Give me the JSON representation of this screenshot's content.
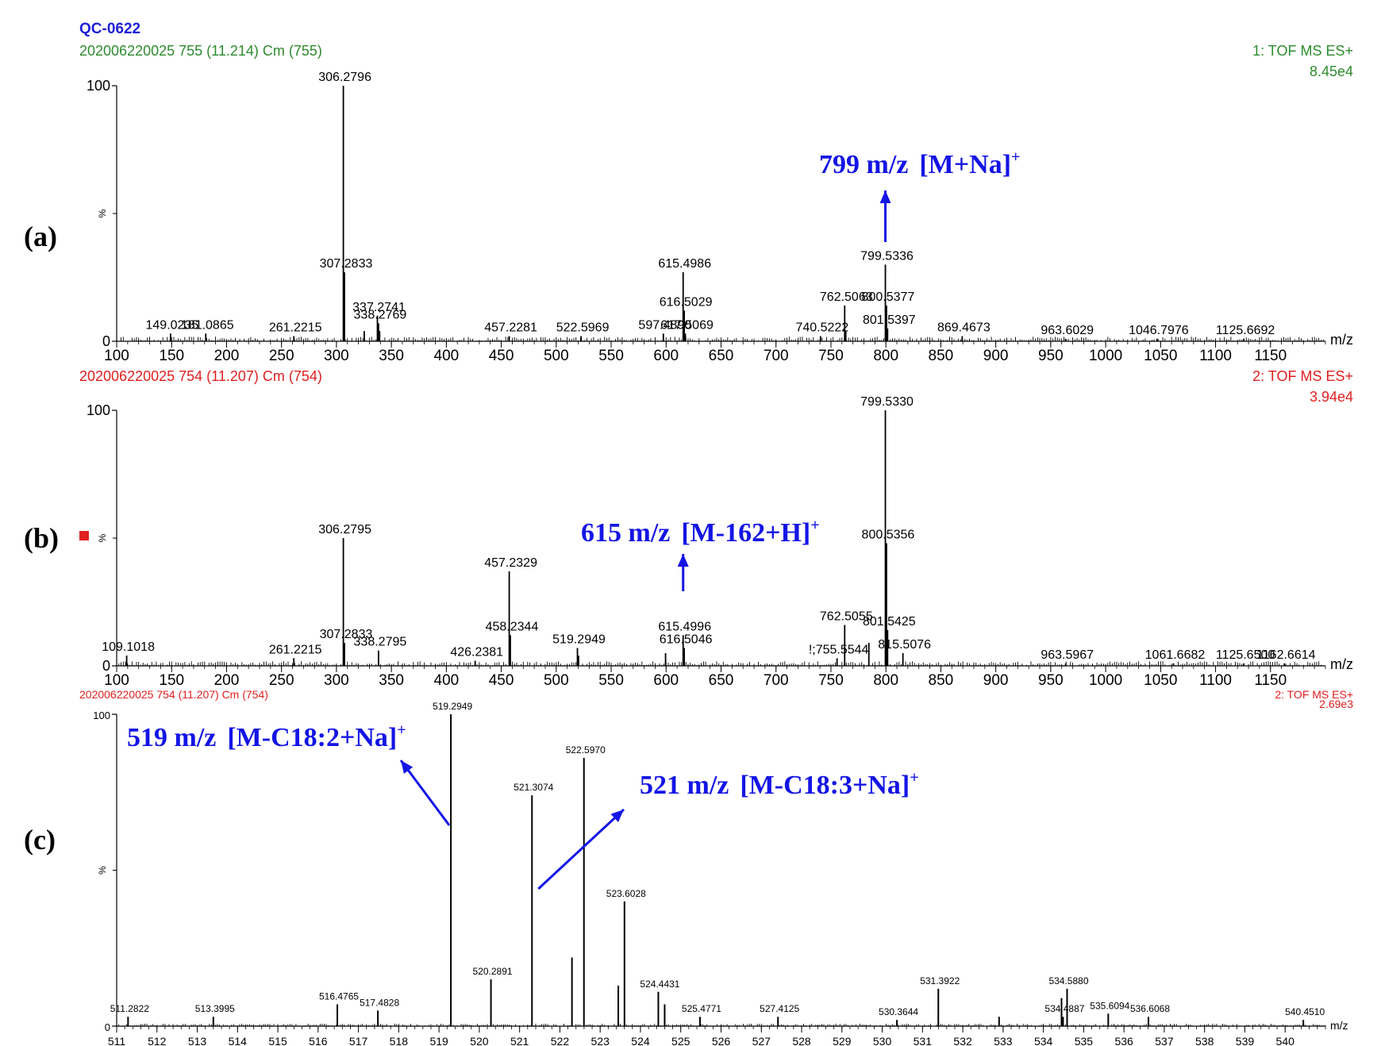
{
  "header": {
    "sample_id": "QC-0622"
  },
  "colors": {
    "title": "#1f1fd6",
    "green": "#2e8b2e",
    "red": "#e02020",
    "blue": "#1414e6",
    "ink": "#000000"
  },
  "chart_data": [
    {
      "type": "bar",
      "panel_label": "(a)",
      "scan": "202006220025 755 (11.214) Cm (755)",
      "scan_color": "green",
      "function": "1: TOF MS ES+",
      "max_intensity": "8.45e4",
      "ylabel": "%",
      "xlabel": "m/z",
      "xlim": [
        100,
        1200
      ],
      "ylim": [
        0,
        100
      ],
      "xticks": [
        100,
        150,
        200,
        250,
        300,
        350,
        400,
        450,
        500,
        550,
        600,
        650,
        700,
        750,
        800,
        850,
        900,
        950,
        1000,
        1050,
        1100,
        1150
      ],
      "peaks": [
        {
          "mz": 306.2796,
          "int": 100,
          "label": "306.2796"
        },
        {
          "mz": 307.2833,
          "int": 27,
          "label": "307.2833"
        },
        {
          "mz": 337.2741,
          "int": 10,
          "label": "337.2741"
        },
        {
          "mz": 338.2769,
          "int": 7,
          "label": "338.2769"
        },
        {
          "mz": 339.28,
          "int": 4
        },
        {
          "mz": 325.3,
          "int": 4
        },
        {
          "mz": 615.4986,
          "int": 27,
          "label": "615.4986"
        },
        {
          "mz": 616.5029,
          "int": 12,
          "label": "616.5029"
        },
        {
          "mz": 617.5069,
          "int": 3,
          "label": "617.5069"
        },
        {
          "mz": 799.5336,
          "int": 30,
          "label": "799.5336"
        },
        {
          "mz": 800.5377,
          "int": 14,
          "label": "800.5377"
        },
        {
          "mz": 801.5397,
          "int": 5,
          "label": "801.5397"
        },
        {
          "mz": 762.5063,
          "int": 14,
          "label": "762.5063"
        },
        {
          "mz": 763.5,
          "int": 4
        },
        {
          "mz": 149.0235,
          "int": 3,
          "label": "149.0235"
        },
        {
          "mz": 181.0865,
          "int": 3,
          "label": "181.0865"
        },
        {
          "mz": 261.2215,
          "int": 2,
          "label": "261.2215"
        },
        {
          "mz": 457.2281,
          "int": 2,
          "label": "457.2281"
        },
        {
          "mz": 522.5969,
          "int": 2,
          "label": "522.5969"
        },
        {
          "mz": 597.489,
          "int": 3,
          "label": "597.4890"
        },
        {
          "mz": 740.5222,
          "int": 2,
          "label": "740.5222"
        },
        {
          "mz": 869.4673,
          "int": 2,
          "label": "869.4673"
        },
        {
          "mz": 963.6029,
          "int": 1,
          "label": "963.6029"
        },
        {
          "mz": 1046.7976,
          "int": 1,
          "label": "1046.7976"
        },
        {
          "mz": 1125.6692,
          "int": 1,
          "label": "1125.6692"
        }
      ],
      "annotation": {
        "text": "799 m/z",
        "ion": "[M+Na]",
        "sup": "+",
        "target_mz": 799.5336
      }
    },
    {
      "type": "bar",
      "panel_label": "(b)",
      "scan": "202006220025 754 (11.207) Cm (754)",
      "scan_color": "red",
      "function": "2: TOF MS ES+",
      "max_intensity": "3.94e4",
      "ylabel": "%",
      "xlabel": "m/z",
      "xlim": [
        100,
        1200
      ],
      "ylim": [
        0,
        100
      ],
      "xticks": [
        100,
        150,
        200,
        250,
        300,
        350,
        400,
        450,
        500,
        550,
        600,
        650,
        700,
        750,
        800,
        850,
        900,
        950,
        1000,
        1050,
        1100,
        1150
      ],
      "peaks": [
        {
          "mz": 799.533,
          "int": 100,
          "label": "799.5330"
        },
        {
          "mz": 800.5356,
          "int": 48,
          "label": "800.5356"
        },
        {
          "mz": 801.5425,
          "int": 14,
          "label": "801.5425"
        },
        {
          "mz": 306.2795,
          "int": 50,
          "label": "306.2795"
        },
        {
          "mz": 307.2833,
          "int": 9,
          "label": "307.2833"
        },
        {
          "mz": 457.2329,
          "int": 37,
          "label": "457.2329"
        },
        {
          "mz": 458.2344,
          "int": 12,
          "label": "458.2344"
        },
        {
          "mz": 519.2949,
          "int": 7,
          "label": "519.2949"
        },
        {
          "mz": 520.3,
          "int": 4
        },
        {
          "mz": 615.4996,
          "int": 12,
          "label": "615.4996"
        },
        {
          "mz": 616.5046,
          "int": 7,
          "label": "616.5046"
        },
        {
          "mz": 762.5055,
          "int": 16,
          "label": "762.5055"
        },
        {
          "mz": 784.5,
          "int": 9
        },
        {
          "mz": 599.5,
          "int": 5
        },
        {
          "mz": 109.1018,
          "int": 4,
          "label": "109.1018"
        },
        {
          "mz": 261.2215,
          "int": 3,
          "label": "261.2215"
        },
        {
          "mz": 338.2795,
          "int": 6,
          "label": "338.2795"
        },
        {
          "mz": 426.2381,
          "int": 2,
          "label": "426.2381"
        },
        {
          "mz": 755.5544,
          "int": 3,
          "label": "!;755.5544"
        },
        {
          "mz": 815.5076,
          "int": 5,
          "label": "815.5076"
        },
        {
          "mz": 963.5967,
          "int": 1,
          "label": "963.5967"
        },
        {
          "mz": 1061.6682,
          "int": 1,
          "label": "1061.6682"
        },
        {
          "mz": 1125.65,
          "int": 1,
          "label": "1125.6500"
        },
        {
          "mz": 1162.6614,
          "int": 1,
          "label": "1162.6614"
        }
      ],
      "annotation": {
        "text": "615 m/z",
        "ion": "[M-162+H]",
        "sup": "+",
        "target_mz": 615.4996
      }
    },
    {
      "type": "bar",
      "panel_label": "(c)",
      "scan": "202006220025 754 (11.207) Cm (754)",
      "scan_color": "red",
      "function": "2: TOF MS ES+",
      "max_intensity": "2.69e3",
      "ylabel": "%",
      "xlabel": "m/z",
      "xlim": [
        511,
        541
      ],
      "ylim": [
        0,
        100
      ],
      "xticks": [
        511,
        512,
        513,
        514,
        515,
        516,
        517,
        518,
        519,
        520,
        521,
        522,
        523,
        524,
        525,
        526,
        527,
        528,
        529,
        530,
        531,
        532,
        533,
        534,
        535,
        536,
        537,
        538,
        539,
        540
      ],
      "peaks": [
        {
          "mz": 519.2949,
          "int": 100,
          "label": "519.2949"
        },
        {
          "mz": 521.3074,
          "int": 74,
          "label": "521.3074"
        },
        {
          "mz": 522.597,
          "int": 86,
          "label": "522.5970"
        },
        {
          "mz": 523.6028,
          "int": 40,
          "label": "523.6028"
        },
        {
          "mz": 522.3,
          "int": 22
        },
        {
          "mz": 520.2891,
          "int": 15,
          "label": "520.2891"
        },
        {
          "mz": 524.4431,
          "int": 11,
          "label": "524.4431"
        },
        {
          "mz": 524.6,
          "int": 7
        },
        {
          "mz": 523.45,
          "int": 13
        },
        {
          "mz": 525.4771,
          "int": 3,
          "label": "525.4771"
        },
        {
          "mz": 511.2822,
          "int": 3,
          "label": "511.2822"
        },
        {
          "mz": 513.3995,
          "int": 3,
          "label": "513.3995"
        },
        {
          "mz": 516.4765,
          "int": 7,
          "label": "516.4765"
        },
        {
          "mz": 517.4828,
          "int": 5,
          "label": "517.4828"
        },
        {
          "mz": 527.4125,
          "int": 3,
          "label": "527.4125"
        },
        {
          "mz": 530.3644,
          "int": 2,
          "label": "530.3644"
        },
        {
          "mz": 531.3922,
          "int": 12,
          "label": "531.3922"
        },
        {
          "mz": 534.4887,
          "int": 3,
          "label": "534.4887"
        },
        {
          "mz": 534.588,
          "int": 12,
          "label": "534.5880"
        },
        {
          "mz": 534.45,
          "int": 9
        },
        {
          "mz": 535.6094,
          "int": 4,
          "label": "535.6094"
        },
        {
          "mz": 536.6068,
          "int": 3,
          "label": "536.6068"
        },
        {
          "mz": 540.451,
          "int": 2,
          "label": "540.4510"
        },
        {
          "mz": 532.9,
          "int": 3
        }
      ],
      "annotations": [
        {
          "text": "519 m/z",
          "ion": "[M-C18:2+Na]",
          "sup": "+",
          "target_mz": 519.2949
        },
        {
          "text": "521 m/z",
          "ion": "[M-C18:3+Na]",
          "sup": "+",
          "target_mz": 521.3074
        }
      ]
    }
  ]
}
